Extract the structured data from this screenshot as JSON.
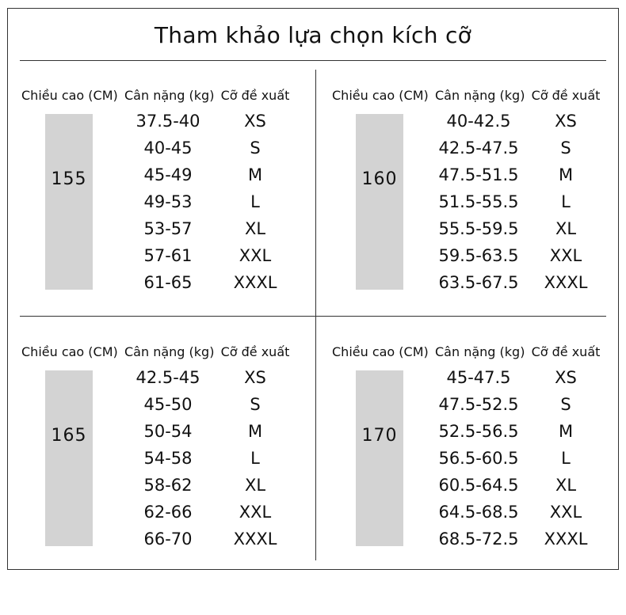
{
  "title": "Tham khảo lựa chọn kích cỡ",
  "headers": {
    "height": "Chiều cao (CM)",
    "weight": "Cân nặng (kg)",
    "size": "Cỡ đề xuất"
  },
  "panels": [
    {
      "height": "155",
      "rows": [
        {
          "weight": "37.5-40",
          "size": "XS"
        },
        {
          "weight": "40-45",
          "size": "S"
        },
        {
          "weight": "45-49",
          "size": "M"
        },
        {
          "weight": "49-53",
          "size": "L"
        },
        {
          "weight": "53-57",
          "size": "XL"
        },
        {
          "weight": "57-61",
          "size": "XXL"
        },
        {
          "weight": "61-65",
          "size": "XXXL"
        }
      ]
    },
    {
      "height": "160",
      "rows": [
        {
          "weight": "40-42.5",
          "size": "XS"
        },
        {
          "weight": "42.5-47.5",
          "size": "S"
        },
        {
          "weight": "47.5-51.5",
          "size": "M"
        },
        {
          "weight": "51.5-55.5",
          "size": "L"
        },
        {
          "weight": "55.5-59.5",
          "size": "XL"
        },
        {
          "weight": "59.5-63.5",
          "size": "XXL"
        },
        {
          "weight": "63.5-67.5",
          "size": "XXXL"
        }
      ]
    },
    {
      "height": "165",
      "rows": [
        {
          "weight": "42.5-45",
          "size": "XS"
        },
        {
          "weight": "45-50",
          "size": "S"
        },
        {
          "weight": "50-54",
          "size": "M"
        },
        {
          "weight": "54-58",
          "size": "L"
        },
        {
          "weight": "58-62",
          "size": "XL"
        },
        {
          "weight": "62-66",
          "size": "XXL"
        },
        {
          "weight": "66-70",
          "size": "XXXL"
        }
      ]
    },
    {
      "height": "170",
      "rows": [
        {
          "weight": "45-47.5",
          "size": "XS"
        },
        {
          "weight": "47.5-52.5",
          "size": "S"
        },
        {
          "weight": "52.5-56.5",
          "size": "M"
        },
        {
          "weight": "56.5-60.5",
          "size": "L"
        },
        {
          "weight": "60.5-64.5",
          "size": "XL"
        },
        {
          "weight": "64.5-68.5",
          "size": "XXL"
        },
        {
          "weight": "68.5-72.5",
          "size": "XXXL"
        }
      ]
    }
  ]
}
